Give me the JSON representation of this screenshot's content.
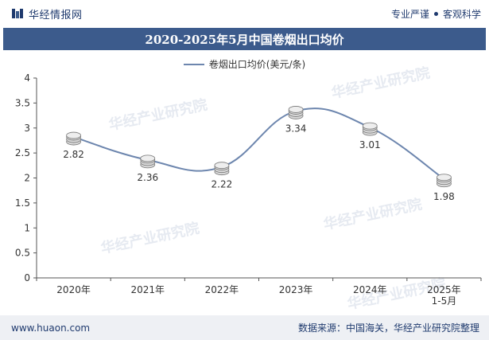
{
  "header": {
    "brand_name": "华经情报网",
    "tagline_left": "专业严谨",
    "tagline_right": "客观科学"
  },
  "colors": {
    "title_bg": "#3c5b8c",
    "line": "#6d86ae",
    "brand": "#1f3a6e"
  },
  "chart_data": {
    "type": "line",
    "title": "2020-2025年5月中国卷烟出口均价",
    "categories": [
      "2020年",
      "2021年",
      "2022年",
      "2023年",
      "2024年",
      "2025年\n1-5月"
    ],
    "series": [
      {
        "name": "卷烟出口均价(美元/条)",
        "values": [
          2.82,
          2.36,
          2.22,
          3.34,
          3.01,
          1.98
        ]
      }
    ],
    "data_labels": [
      "2.82",
      "2.36",
      "2.22",
      "3.34",
      "3.01",
      "1.98"
    ],
    "y_ticks": [
      "0",
      "0.5",
      "1",
      "1.5",
      "2",
      "2.5",
      "3",
      "3.5",
      "4"
    ],
    "ylim": [
      0,
      4
    ],
    "grid": false,
    "legend_position": "top-center",
    "smooth": true
  },
  "watermark": "华经产业研究院",
  "footer": {
    "url": "www.huaon.com",
    "source": "数据来源：中国海关，华经产业研究院整理"
  }
}
